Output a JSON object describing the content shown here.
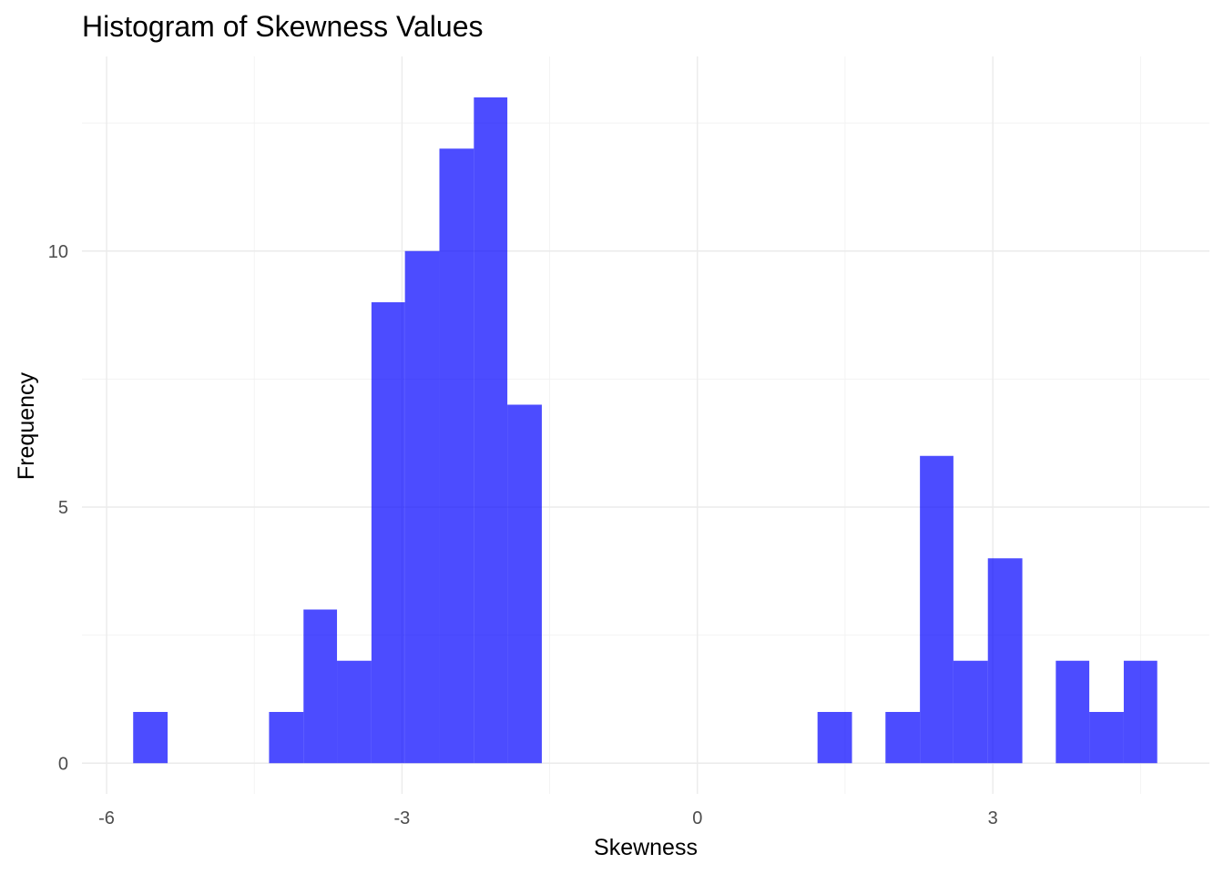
{
  "chart_data": {
    "type": "bar",
    "subtype": "histogram",
    "title": "Histogram of Skewness Values",
    "xlabel": "Skewness",
    "ylabel": "Frequency",
    "xlim": [
      -6.25,
      5.2
    ],
    "ylim": [
      -0.6,
      13.8
    ],
    "x_ticks": [
      -6,
      -3,
      0,
      3
    ],
    "x_tick_labels": [
      "-6",
      "-3",
      "0",
      "3"
    ],
    "x_minor_ticks": [
      -4.5,
      -1.5,
      1.5,
      4.5
    ],
    "y_ticks": [
      0,
      5,
      10
    ],
    "y_tick_labels": [
      "0",
      "5",
      "10"
    ],
    "y_minor_ticks": [
      2.5,
      7.5,
      12.5
    ],
    "grid": true,
    "bar_color": "#0000ff",
    "bar_opacity": 0.7,
    "bins": [
      {
        "x0": -5.73,
        "x1": -5.38,
        "count": 1
      },
      {
        "x0": -4.35,
        "x1": -4.0,
        "count": 1
      },
      {
        "x0": -4.0,
        "x1": -3.66,
        "count": 3
      },
      {
        "x0": -3.66,
        "x1": -3.31,
        "count": 2
      },
      {
        "x0": -3.31,
        "x1": -2.97,
        "count": 9
      },
      {
        "x0": -2.97,
        "x1": -2.62,
        "count": 10
      },
      {
        "x0": -2.62,
        "x1": -2.27,
        "count": 12
      },
      {
        "x0": -2.27,
        "x1": -1.93,
        "count": 13
      },
      {
        "x0": -1.93,
        "x1": -1.58,
        "count": 7
      },
      {
        "x0": 1.22,
        "x1": 1.57,
        "count": 1
      },
      {
        "x0": 1.91,
        "x1": 2.26,
        "count": 1
      },
      {
        "x0": 2.26,
        "x1": 2.6,
        "count": 6
      },
      {
        "x0": 2.6,
        "x1": 2.95,
        "count": 2
      },
      {
        "x0": 2.95,
        "x1": 3.3,
        "count": 4
      },
      {
        "x0": 3.64,
        "x1": 3.98,
        "count": 2
      },
      {
        "x0": 3.98,
        "x1": 4.33,
        "count": 1
      },
      {
        "x0": 4.33,
        "x1": 4.67,
        "count": 2
      }
    ]
  }
}
